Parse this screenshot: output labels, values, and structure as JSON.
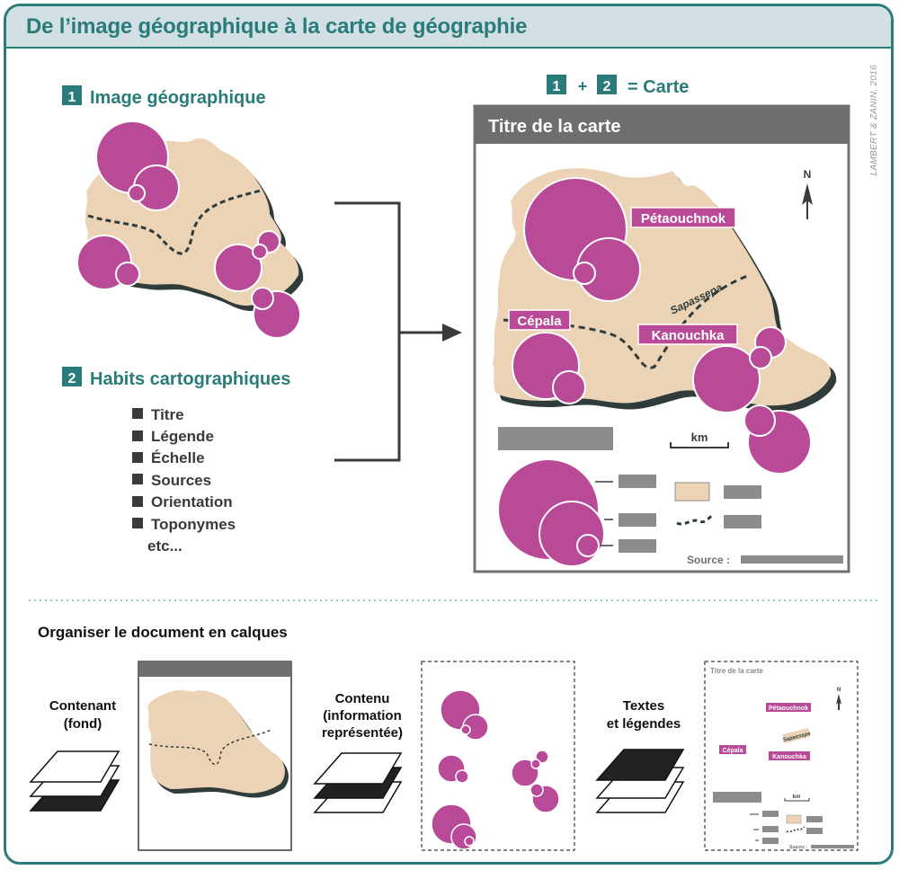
{
  "header": {
    "title": "De l’image géographique à la carte de géographie"
  },
  "credit": "LAMBERT & ZANIN, 2016",
  "step1": {
    "number": "1",
    "label": "Image géographique"
  },
  "step2": {
    "number": "2",
    "label": "Habits cartographiques"
  },
  "habits": [
    "Titre",
    "Légende",
    "Échelle",
    "Sources",
    "Orientation",
    "Toponymes",
    "etc..."
  ],
  "formula": {
    "n1": "1",
    "plus": "+",
    "n2": "2",
    "result": "= Carte"
  },
  "map": {
    "title": "Titre de la carte",
    "north": "N",
    "places": [
      "Pétaouchnok",
      "Cépala",
      "Kanouchka"
    ],
    "river": "Sapassepa",
    "scale_unit": "km",
    "source_label": "Source :"
  },
  "layers": {
    "heading": "Organiser le document en calques",
    "contenant_line1": "Contenant",
    "contenant_line2": "(fond)",
    "contenu_line1": "Contenu",
    "contenu_line2": "(information",
    "contenu_line3": "représentée)",
    "textes_line1": "Textes",
    "textes_line2": "et légendes"
  },
  "colors": {
    "teal": "#2a7c7a",
    "magenta": "#b84a98",
    "land": "#ecd3b6",
    "shadow": "#2f3c3b",
    "gray": "#8c8c8c",
    "header_bg": "#d3e0e3"
  }
}
